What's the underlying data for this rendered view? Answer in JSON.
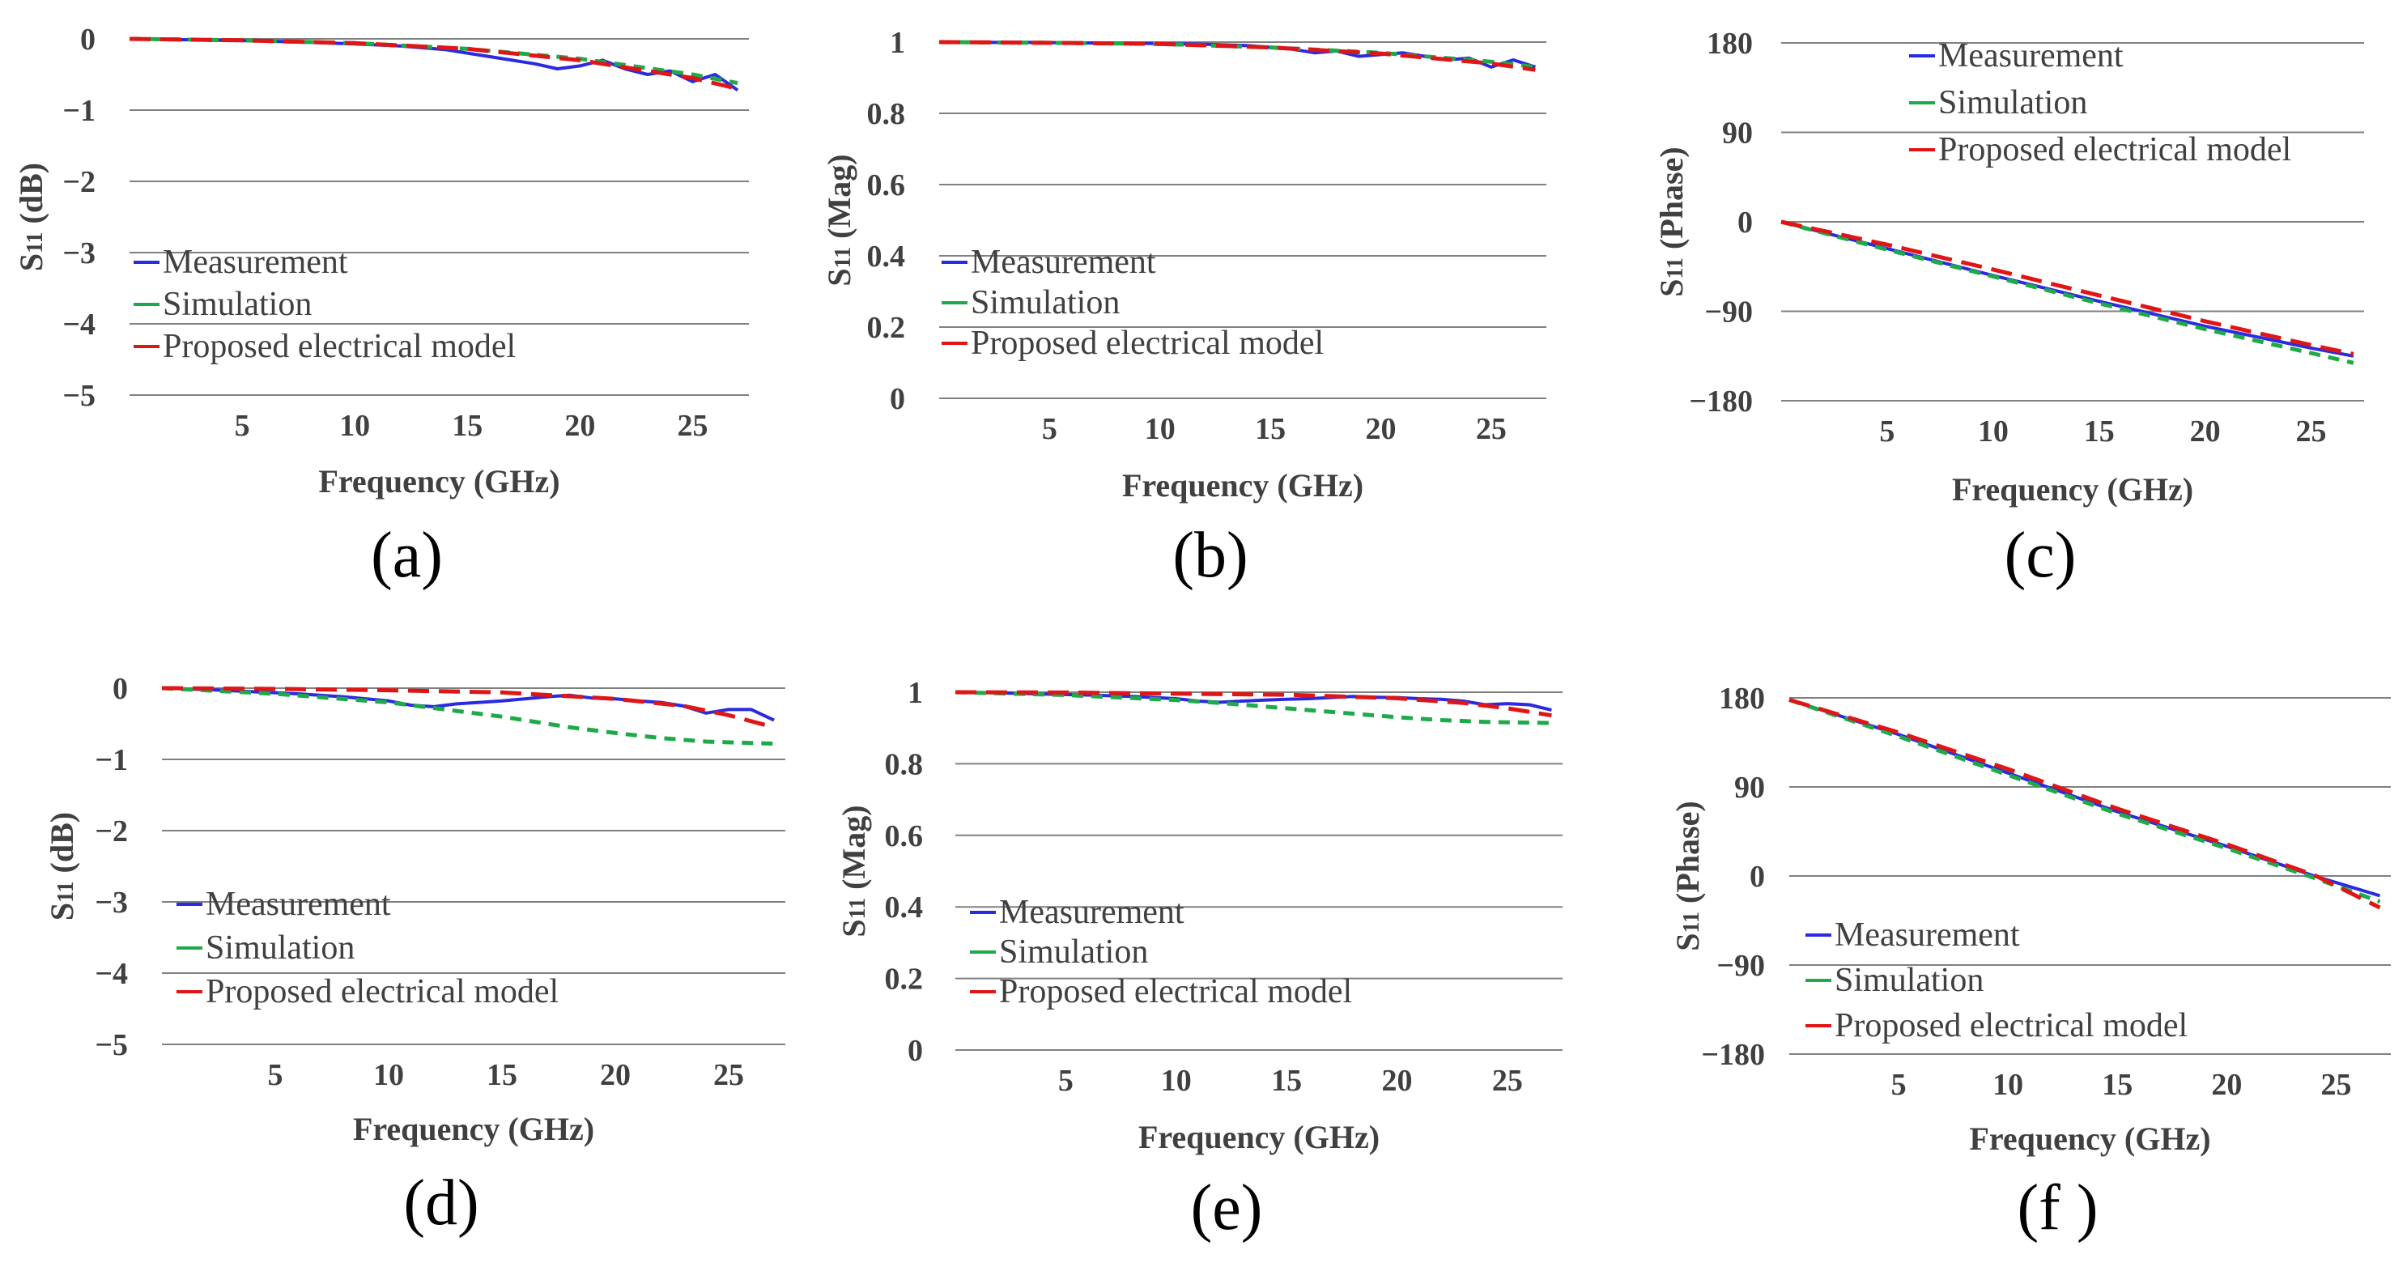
{
  "colors": {
    "measurement": "#2a2ae0",
    "simulation": "#1faa4a",
    "model": "#e01515",
    "grid": "#808080",
    "text": "#404040"
  },
  "chart_data": [
    {
      "type": "line",
      "panel_label": "(a)",
      "xlabel": "Frequency (GHz)",
      "ylabel_main": "S",
      "ylabel_sub": "11",
      "ylabel_unit": " (dB)",
      "xlim": [
        0,
        27.5
      ],
      "ylim": [
        -5,
        0
      ],
      "xticks": [
        5,
        10,
        15,
        20,
        25
      ],
      "xtick_labels": [
        "5",
        "10",
        "15",
        "20",
        "25"
      ],
      "yticks": [
        0,
        -1,
        -2,
        -3,
        -4,
        -5
      ],
      "ytick_labels": [
        "0",
        "−1",
        "−2",
        "−3",
        "−4",
        "−5"
      ],
      "legend": [
        "Measurement",
        "Simulation",
        "Proposed electrical model"
      ],
      "legend_position": "lower-left",
      "series": [
        {
          "name": "Measurement",
          "style": "solid",
          "x": [
            0,
            2,
            4,
            6,
            8,
            10,
            12,
            14,
            15,
            16,
            17,
            18,
            19,
            20,
            21,
            22,
            23,
            24,
            25,
            26,
            27
          ],
          "y": [
            0,
            -0.01,
            -0.02,
            -0.03,
            -0.05,
            -0.07,
            -0.1,
            -0.15,
            -0.2,
            -0.25,
            -0.3,
            -0.35,
            -0.42,
            -0.38,
            -0.3,
            -0.42,
            -0.5,
            -0.45,
            -0.6,
            -0.5,
            -0.72
          ]
        },
        {
          "name": "Simulation",
          "style": "dashed",
          "x": [
            0,
            5,
            10,
            15,
            20,
            25,
            27
          ],
          "y": [
            0,
            -0.02,
            -0.06,
            -0.14,
            -0.28,
            -0.5,
            -0.62
          ]
        },
        {
          "name": "Proposed electrical model",
          "style": "dashed",
          "x": [
            0,
            5,
            10,
            15,
            20,
            25,
            27
          ],
          "y": [
            0,
            -0.02,
            -0.06,
            -0.14,
            -0.3,
            -0.55,
            -0.7
          ]
        }
      ]
    },
    {
      "type": "line",
      "panel_label": "(b)",
      "xlabel": "Frequency (GHz)",
      "ylabel_main": "S",
      "ylabel_sub": "11",
      "ylabel_unit": " (Mag)",
      "xlim": [
        0,
        27.5
      ],
      "ylim": [
        0,
        1
      ],
      "xticks": [
        5,
        10,
        15,
        20,
        25
      ],
      "xtick_labels": [
        "5",
        "10",
        "15",
        "20",
        "25"
      ],
      "yticks": [
        0,
        0.2,
        0.4,
        0.6,
        0.8,
        1
      ],
      "ytick_labels": [
        "0",
        "0.2",
        "0.4",
        "0.6",
        "0.8",
        "1"
      ],
      "legend": [
        "Measurement",
        "Simulation",
        "Proposed electrical model"
      ],
      "legend_position": "lower-left",
      "series": [
        {
          "name": "Measurement",
          "style": "solid",
          "x": [
            0,
            2,
            4,
            6,
            8,
            10,
            12,
            14,
            16,
            17,
            18,
            19,
            20,
            21,
            22,
            23,
            24,
            25,
            26,
            27
          ],
          "y": [
            1,
            0.999,
            0.999,
            0.998,
            0.997,
            0.996,
            0.994,
            0.99,
            0.98,
            0.97,
            0.975,
            0.96,
            0.965,
            0.97,
            0.96,
            0.95,
            0.955,
            0.93,
            0.95,
            0.93
          ]
        },
        {
          "name": "Simulation",
          "style": "dashed",
          "x": [
            0,
            5,
            10,
            15,
            20,
            25,
            27
          ],
          "y": [
            1,
            0.998,
            0.995,
            0.985,
            0.97,
            0.945,
            0.93
          ]
        },
        {
          "name": "Proposed electrical model",
          "style": "dashed",
          "x": [
            0,
            5,
            10,
            15,
            20,
            25,
            27
          ],
          "y": [
            1,
            0.998,
            0.995,
            0.985,
            0.968,
            0.94,
            0.922
          ]
        }
      ]
    },
    {
      "type": "line",
      "panel_label": "(c)",
      "xlabel": "Frequency (GHz)",
      "ylabel_main": "S",
      "ylabel_sub": "11",
      "ylabel_unit": " (Phase)",
      "xlim": [
        0,
        27.5
      ],
      "ylim": [
        -180,
        180
      ],
      "xticks": [
        5,
        10,
        15,
        20,
        25
      ],
      "xtick_labels": [
        "5",
        "10",
        "15",
        "20",
        "25"
      ],
      "yticks": [
        180,
        90,
        0,
        -90,
        -180
      ],
      "ytick_labels": [
        "180",
        "90",
        "0",
        "−90",
        "−180"
      ],
      "legend": [
        "Measurement",
        "Simulation",
        "Proposed electrical model"
      ],
      "legend_position": "top-center",
      "series": [
        {
          "name": "Measurement",
          "style": "solid",
          "x": [
            0,
            5,
            10,
            15,
            20,
            25,
            27
          ],
          "y": [
            0,
            -27,
            -54,
            -80,
            -105,
            -127,
            -135
          ]
        },
        {
          "name": "Simulation",
          "style": "dashed",
          "x": [
            0,
            5,
            10,
            15,
            20,
            25,
            27
          ],
          "y": [
            0,
            -28,
            -55,
            -82,
            -108,
            -132,
            -142
          ]
        },
        {
          "name": "Proposed electrical model",
          "style": "dashed",
          "x": [
            0,
            5,
            10,
            15,
            20,
            25,
            27
          ],
          "y": [
            0,
            -23,
            -48,
            -74,
            -100,
            -124,
            -133
          ]
        }
      ]
    },
    {
      "type": "line",
      "panel_label": "(d)",
      "xlabel": "Frequency (GHz)",
      "ylabel_main": "S",
      "ylabel_sub": "11",
      "ylabel_unit": " (dB)",
      "xlim": [
        0,
        27.5
      ],
      "ylim": [
        -5,
        0
      ],
      "xticks": [
        5,
        10,
        15,
        20,
        25
      ],
      "xtick_labels": [
        "5",
        "10",
        "15",
        "20",
        "25"
      ],
      "yticks": [
        0,
        -1,
        -2,
        -3,
        -4,
        -5
      ],
      "ytick_labels": [
        "0",
        "−1",
        "−2",
        "−3",
        "−4",
        "−5"
      ],
      "legend": [
        "Measurement",
        "Simulation",
        "Proposed electrical model"
      ],
      "legend_position": "lower-left",
      "series": [
        {
          "name": "Measurement",
          "style": "solid",
          "x": [
            0,
            2,
            4,
            6,
            8,
            10,
            11,
            12,
            13,
            14,
            15,
            16,
            17,
            18,
            19,
            20,
            21,
            22,
            23,
            24,
            25,
            26,
            27
          ],
          "y": [
            0,
            -0.02,
            -0.05,
            -0.08,
            -0.12,
            -0.18,
            -0.24,
            -0.26,
            -0.22,
            -0.2,
            -0.18,
            -0.15,
            -0.12,
            -0.1,
            -0.14,
            -0.15,
            -0.18,
            -0.2,
            -0.25,
            -0.35,
            -0.3,
            -0.3,
            -0.45
          ]
        },
        {
          "name": "Simulation",
          "style": "dashed",
          "x": [
            0,
            5,
            10,
            12,
            15,
            18,
            20,
            22,
            24,
            26,
            27
          ],
          "y": [
            0,
            -0.08,
            -0.2,
            -0.28,
            -0.4,
            -0.55,
            -0.63,
            -0.7,
            -0.75,
            -0.77,
            -0.78
          ]
        },
        {
          "name": "Proposed electrical model",
          "style": "dashed",
          "x": [
            0,
            5,
            10,
            15,
            20,
            23,
            25,
            27
          ],
          "y": [
            0,
            -0.01,
            -0.03,
            -0.06,
            -0.15,
            -0.25,
            -0.38,
            -0.55
          ]
        }
      ]
    },
    {
      "type": "line",
      "panel_label": "(e)",
      "xlabel": "Frequency (GHz)",
      "ylabel_main": "S",
      "ylabel_sub": "11",
      "ylabel_unit": " (Mag)",
      "xlim": [
        0,
        27.5
      ],
      "ylim": [
        0,
        1
      ],
      "xticks": [
        5,
        10,
        15,
        20,
        25
      ],
      "xtick_labels": [
        "5",
        "10",
        "15",
        "20",
        "25"
      ],
      "yticks": [
        0,
        0.2,
        0.4,
        0.6,
        0.8,
        1
      ],
      "ytick_labels": [
        "0",
        "0.2",
        "0.4",
        "0.6",
        "0.8",
        "1"
      ],
      "legend": [
        "Measurement",
        "Simulation",
        "Proposed electrical model"
      ],
      "legend_position": "lower-left",
      "series": [
        {
          "name": "Measurement",
          "style": "solid",
          "x": [
            0,
            2,
            4,
            6,
            8,
            10,
            11,
            12,
            13,
            14,
            15,
            16,
            17,
            18,
            19,
            20,
            21,
            22,
            23,
            24,
            25,
            26,
            27
          ],
          "y": [
            1,
            0.998,
            0.995,
            0.992,
            0.988,
            0.982,
            0.975,
            0.972,
            0.975,
            0.978,
            0.98,
            0.982,
            0.985,
            0.988,
            0.986,
            0.985,
            0.982,
            0.98,
            0.975,
            0.965,
            0.968,
            0.965,
            0.95
          ]
        },
        {
          "name": "Simulation",
          "style": "dashed",
          "x": [
            0,
            5,
            10,
            12,
            15,
            18,
            20,
            22,
            24,
            26,
            27
          ],
          "y": [
            1,
            0.992,
            0.978,
            0.97,
            0.955,
            0.94,
            0.93,
            0.922,
            0.917,
            0.915,
            0.914
          ]
        },
        {
          "name": "Proposed electrical model",
          "style": "dashed",
          "x": [
            0,
            5,
            10,
            15,
            20,
            23,
            25,
            27
          ],
          "y": [
            1,
            0.999,
            0.996,
            0.993,
            0.983,
            0.97,
            0.955,
            0.935
          ]
        }
      ]
    },
    {
      "type": "line",
      "panel_label": "(f )",
      "xlabel": "Frequency (GHz)",
      "ylabel_main": "S",
      "ylabel_sub": "11",
      "ylabel_unit": " (Phase)",
      "xlim": [
        0,
        27.5
      ],
      "ylim": [
        -180,
        180
      ],
      "xticks": [
        5,
        10,
        15,
        20,
        25
      ],
      "xtick_labels": [
        "5",
        "10",
        "15",
        "20",
        "25"
      ],
      "yticks": [
        180,
        90,
        0,
        -90,
        -180
      ],
      "ytick_labels": [
        "180",
        "90",
        "0",
        "−90",
        "−180"
      ],
      "legend": [
        "Measurement",
        "Simulation",
        "Proposed electrical model"
      ],
      "legend_position": "lower-left",
      "series": [
        {
          "name": "Measurement",
          "style": "solid",
          "x": [
            0,
            5,
            10,
            15,
            20,
            24,
            27
          ],
          "y": [
            178,
            143,
            104,
            65,
            30,
            0,
            -20
          ]
        },
        {
          "name": "Simulation",
          "style": "dashed",
          "x": [
            0,
            5,
            10,
            15,
            20,
            24,
            27
          ],
          "y": [
            178,
            141,
            102,
            63,
            28,
            -2,
            -26
          ]
        },
        {
          "name": "Proposed electrical model",
          "style": "dashed",
          "x": [
            0,
            5,
            10,
            15,
            20,
            24,
            27
          ],
          "y": [
            178,
            145,
            108,
            68,
            32,
            1,
            -32
          ]
        }
      ]
    }
  ]
}
